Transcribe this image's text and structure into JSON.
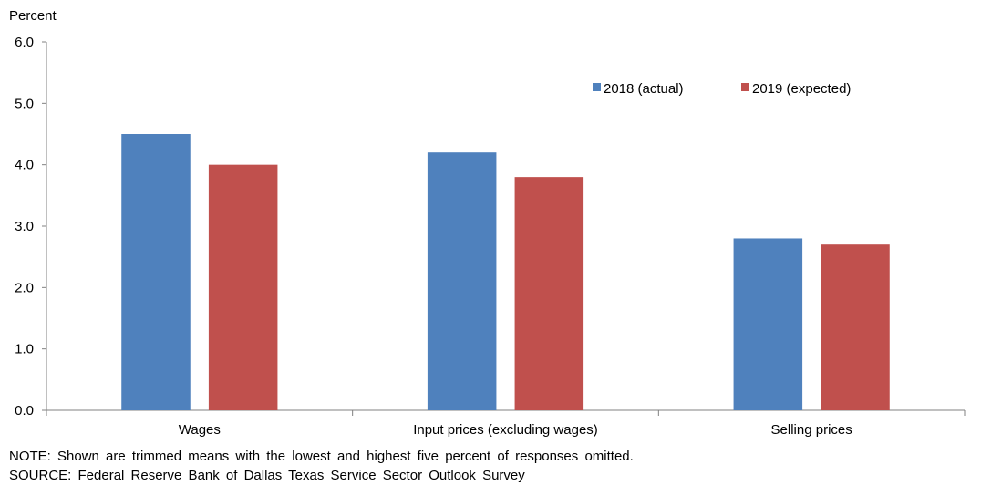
{
  "chart_data": {
    "type": "bar",
    "ylabel": "Percent",
    "ylim": [
      0,
      6
    ],
    "yticks": [
      "0.0",
      "1.0",
      "2.0",
      "3.0",
      "4.0",
      "5.0",
      "6.0"
    ],
    "categories": [
      "Wages",
      "Input prices (excluding wages)",
      "Selling prices"
    ],
    "series": [
      {
        "name": "2018 (actual)",
        "color": "#4f81bd",
        "values": [
          4.5,
          4.2,
          2.8
        ]
      },
      {
        "name": "2019 (expected)",
        "color": "#c0504d",
        "values": [
          4.0,
          3.8,
          2.7
        ]
      }
    ],
    "legend_position": "top-right",
    "grid": false
  },
  "notes": {
    "note": "NOTE:  Shown are trimmed means with the lowest and highest five percent of responses omitted.",
    "source": "SOURCE:  Federal Reserve Bank of Dallas Texas Service Sector Outlook Survey"
  }
}
